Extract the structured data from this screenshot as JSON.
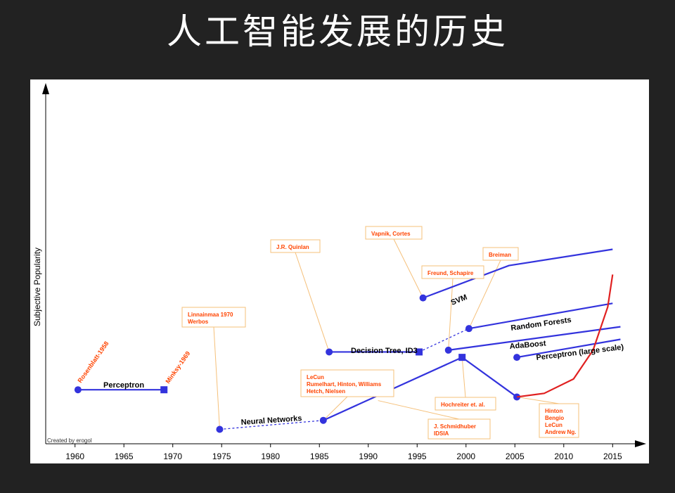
{
  "slide": {
    "title": "人工智能发展的历史"
  },
  "colors": {
    "background": "#222222",
    "panel": "#ffffff",
    "series_line": "#3333dd",
    "deep_learning_curve": "#e02020",
    "annotation_text": "#ff4400",
    "annotation_border": "#f5c07a",
    "axis": "#000000"
  },
  "chart_data": {
    "type": "line",
    "title": "",
    "xlabel": "",
    "ylabel": "Subjective Popularity",
    "xlim": [
      1957,
      2018
    ],
    "ylim": [
      0,
      100
    ],
    "x_ticks": [
      1960,
      1965,
      1970,
      1975,
      1980,
      1985,
      1990,
      1995,
      2000,
      2005,
      2010,
      2015
    ],
    "grid": false,
    "legend": "none",
    "credit": "Created by erogol",
    "series": [
      {
        "name": "Perceptron",
        "points": [
          [
            1960.3,
            15
          ],
          [
            1969.1,
            15
          ]
        ],
        "start_marker": "circle",
        "end_marker": "square"
      },
      {
        "name": "Neural Networks",
        "dashed_points": [
          [
            1974.8,
            4
          ],
          [
            1985.4,
            6.5
          ]
        ],
        "points": [
          [
            1985.4,
            6.5
          ],
          [
            1999.6,
            24
          ],
          [
            2005.2,
            13
          ]
        ],
        "markers": [
          "circle",
          "circle",
          "square",
          "circle"
        ]
      },
      {
        "name": "Decision Tree, ID3",
        "points": [
          [
            1986,
            25.5
          ],
          [
            1995.2,
            25.5
          ]
        ],
        "start_marker": "circle",
        "end_marker": "square"
      },
      {
        "name": "SVM",
        "points": [
          [
            1995.6,
            40.5
          ],
          [
            2004.4,
            49.5
          ],
          [
            2015,
            54
          ]
        ],
        "start_marker": "circle"
      },
      {
        "name": "Random Forests",
        "dashed_points": [
          [
            1995.2,
            25.5
          ],
          [
            2000.3,
            32
          ]
        ],
        "points": [
          [
            2000.3,
            32
          ],
          [
            2015,
            39
          ]
        ],
        "start_marker": "circle"
      },
      {
        "name": "AdaBoost",
        "points": [
          [
            1998.2,
            26
          ],
          [
            2015.8,
            32.5
          ]
        ],
        "start_marker": "circle"
      },
      {
        "name": "Perceptron (large scale)",
        "points": [
          [
            2005.2,
            24
          ],
          [
            2015.8,
            29
          ]
        ],
        "start_marker": "circle"
      },
      {
        "name": "",
        "curve": "deep_learning",
        "points": [
          [
            2005.2,
            13
          ],
          [
            2008,
            14
          ],
          [
            2011,
            18
          ],
          [
            2013,
            26
          ],
          [
            2014.5,
            38
          ],
          [
            2015,
            47
          ]
        ]
      }
    ],
    "point_labels": [
      {
        "text": "Rosenblatt-1958",
        "x": 1960.3,
        "y": 15,
        "rotated": true
      },
      {
        "text": "Minksy-1969",
        "x": 1969.1,
        "y": 15,
        "rotated": true
      }
    ],
    "annotations": [
      {
        "lines": [
          "Linnainmaa 1970",
          "Werbos"
        ],
        "target": [
          1974.8,
          4
        ]
      },
      {
        "lines": [
          "J.R. Quinlan"
        ],
        "target": [
          1986,
          25.5
        ]
      },
      {
        "lines": [
          "Vapnik, Cortes"
        ],
        "target": [
          1995.6,
          40.5
        ]
      },
      {
        "lines": [
          "Freund, Schapire"
        ],
        "target": [
          1998.2,
          26
        ]
      },
      {
        "lines": [
          "Breiman"
        ],
        "target": [
          2000.3,
          32
        ]
      },
      {
        "lines": [
          "LeCun",
          "Rumelhart, Hinton, Williams",
          "Hetch, Nielsen"
        ],
        "target": [
          1985.4,
          6.5
        ]
      },
      {
        "lines": [
          "Hochreiter et. al."
        ],
        "target": [
          1999.6,
          24
        ]
      },
      {
        "lines": [
          "J. Schmidhuber",
          "IDSIA"
        ],
        "target": [
          1991,
          12
        ]
      },
      {
        "lines": [
          "Hinton",
          "Bengio",
          "LeCun",
          "Andrew Ng."
        ],
        "target": [
          2005.2,
          13
        ]
      }
    ]
  }
}
